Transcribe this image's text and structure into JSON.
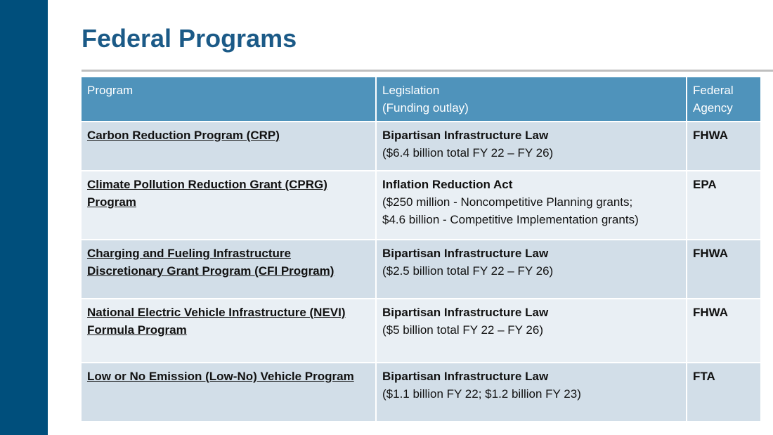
{
  "header": {
    "title": "Federal Programs"
  },
  "table": {
    "columns": [
      "Program",
      [
        "Legislation",
        "(Funding outlay)"
      ],
      "Federal Agency"
    ],
    "rows": [
      {
        "program": "Carbon Reduction Program (CRP)",
        "legislation": "Bipartisan Infrastructure Law",
        "funding": [
          "($6.4 billion total FY 22 – FY 26)"
        ],
        "agency": "FHWA"
      },
      {
        "program": "Climate Pollution Reduction Grant (CPRG) Program",
        "legislation": "Inflation Reduction Act",
        "funding": [
          "($250 million - Noncompetitive Planning grants;",
          "$4.6 billion - Competitive Implementation grants)"
        ],
        "agency": "EPA"
      },
      {
        "program": "Charging and Fueling Infrastructure Discretionary Grant Program (CFI Program)",
        "legislation": "Bipartisan Infrastructure Law",
        "funding": [
          "($2.5 billion total FY 22 – FY 26)"
        ],
        "agency": "FHWA"
      },
      {
        "program": "National Electric Vehicle Infrastructure (NEVI) Formula Program",
        "legislation": "Bipartisan Infrastructure Law",
        "funding": [
          "($5 billion total FY 22 – FY 26)"
        ],
        "agency": "FHWA"
      },
      {
        "program": "Low or No Emission (Low-No) Vehicle Program",
        "legislation": "Bipartisan Infrastructure Law",
        "funding": [
          "($1.1 billion FY 22; $1.2 billion FY 23)"
        ],
        "agency": "FTA"
      }
    ]
  }
}
